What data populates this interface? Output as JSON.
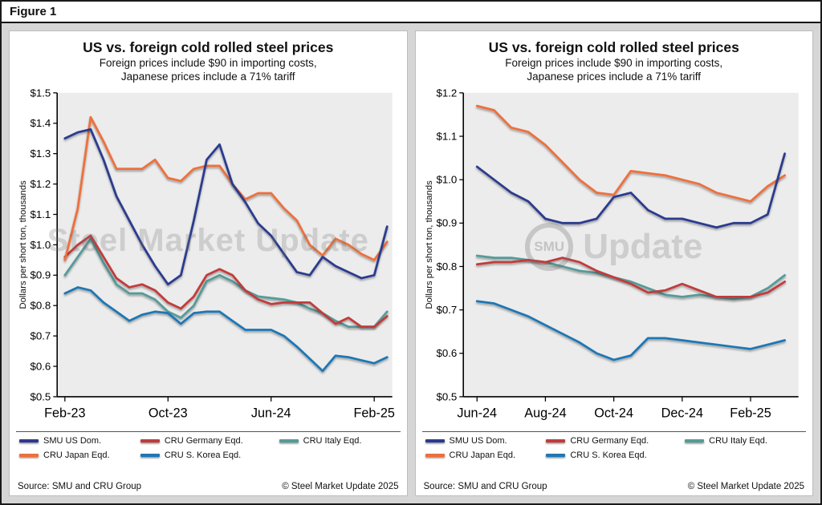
{
  "figure_label": "Figure 1",
  "chart_data": [
    {
      "type": "line",
      "title": "US vs. foreign cold rolled steel prices",
      "subtitle_line1": "Foreign prices include $90 in importing costs,",
      "subtitle_line2": "Japanese prices include a 71% tariff",
      "ylabel": "Dollars per short ton, thousands",
      "ytick_prefix": "$",
      "ytick_step": 0.1,
      "ylim": [
        0.5,
        1.5
      ],
      "xlim": [
        -0.6,
        25.4
      ],
      "grid": false,
      "legend_position": "bottom",
      "xticks": [
        {
          "x": 0,
          "label": "Feb-23"
        },
        {
          "x": 8,
          "label": "Oct-23"
        },
        {
          "x": 16,
          "label": "Jun-24"
        },
        {
          "x": 24,
          "label": "Feb-25"
        }
      ],
      "x": [
        0,
        1,
        2,
        3,
        4,
        5,
        6,
        7,
        8,
        9,
        10,
        11,
        12,
        13,
        14,
        15,
        16,
        17,
        18,
        19,
        20,
        21,
        22,
        23,
        24,
        25
      ],
      "series": [
        {
          "name": "SMU US Dom.",
          "color": "#2b3a8f",
          "values": [
            1.35,
            1.37,
            1.38,
            1.28,
            1.16,
            1.08,
            1.0,
            0.93,
            0.87,
            0.9,
            1.08,
            1.28,
            1.33,
            1.2,
            1.14,
            1.07,
            1.03,
            0.97,
            0.91,
            0.9,
            0.96,
            0.93,
            0.91,
            0.89,
            0.9,
            1.06
          ]
        },
        {
          "name": "CRU Germany Eqd.",
          "color": "#c23b3b",
          "values": [
            0.96,
            1.0,
            1.03,
            0.96,
            0.89,
            0.86,
            0.87,
            0.85,
            0.81,
            0.79,
            0.83,
            0.9,
            0.92,
            0.9,
            0.85,
            0.82,
            0.805,
            0.81,
            0.81,
            0.81,
            0.775,
            0.74,
            0.76,
            0.73,
            0.73,
            0.765
          ]
        },
        {
          "name": "CRU Italy Eqd.",
          "color": "#549b99",
          "values": [
            0.9,
            0.96,
            1.02,
            0.94,
            0.87,
            0.84,
            0.84,
            0.82,
            0.78,
            0.76,
            0.8,
            0.88,
            0.9,
            0.88,
            0.85,
            0.83,
            0.825,
            0.82,
            0.81,
            0.79,
            0.775,
            0.75,
            0.73,
            0.73,
            0.73,
            0.78
          ]
        },
        {
          "name": "CRU Japan Eqd.",
          "color": "#ee6f3a",
          "values": [
            0.95,
            1.12,
            1.42,
            1.34,
            1.25,
            1.25,
            1.25,
            1.28,
            1.22,
            1.21,
            1.25,
            1.26,
            1.26,
            1.2,
            1.15,
            1.17,
            1.17,
            1.12,
            1.08,
            1.0,
            0.965,
            1.02,
            1.0,
            0.97,
            0.95,
            1.01
          ]
        },
        {
          "name": "CRU S. Korea Eqd.",
          "color": "#1f77b5",
          "values": [
            0.84,
            0.86,
            0.85,
            0.81,
            0.78,
            0.75,
            0.77,
            0.78,
            0.775,
            0.74,
            0.775,
            0.78,
            0.78,
            0.75,
            0.72,
            0.72,
            0.72,
            0.7,
            0.665,
            0.625,
            0.585,
            0.635,
            0.63,
            0.62,
            0.61,
            0.63
          ]
        }
      ],
      "watermark_text": "Steel Market Update",
      "source": "Source: SMU and CRU Group",
      "copyright": "© Steel Market Update 2025"
    },
    {
      "type": "line",
      "title": "US vs. foreign cold rolled steel prices",
      "subtitle_line1": "Foreign prices include $90 in importing costs,",
      "subtitle_line2": "Japanese prices include a 71% tariff",
      "ylabel": "Dollars per short ton, thousands",
      "ytick_prefix": "$",
      "ytick_step": 0.1,
      "ylim": [
        0.5,
        1.2
      ],
      "xlim": [
        15.6,
        25.4
      ],
      "grid": false,
      "legend_position": "bottom",
      "xticks": [
        {
          "x": 16,
          "label": "Jun-24"
        },
        {
          "x": 18,
          "label": "Aug-24"
        },
        {
          "x": 20,
          "label": "Oct-24"
        },
        {
          "x": 22,
          "label": "Dec-24"
        },
        {
          "x": 24,
          "label": "Feb-25"
        }
      ],
      "x": [
        16,
        16.5,
        17,
        17.5,
        18,
        18.5,
        19,
        19.5,
        20,
        20.5,
        21,
        21.5,
        22,
        22.5,
        23,
        23.5,
        24,
        24.5,
        25
      ],
      "series": [
        {
          "name": "SMU US Dom.",
          "color": "#2b3a8f",
          "values": [
            1.03,
            1.0,
            0.97,
            0.95,
            0.91,
            0.9,
            0.9,
            0.91,
            0.96,
            0.97,
            0.93,
            0.91,
            0.91,
            0.9,
            0.89,
            0.9,
            0.9,
            0.92,
            1.06
          ]
        },
        {
          "name": "CRU Germany Eqd.",
          "color": "#c23b3b",
          "values": [
            0.805,
            0.81,
            0.81,
            0.815,
            0.81,
            0.82,
            0.81,
            0.79,
            0.775,
            0.76,
            0.74,
            0.745,
            0.76,
            0.745,
            0.73,
            0.73,
            0.73,
            0.74,
            0.765
          ]
        },
        {
          "name": "CRU Italy Eqd.",
          "color": "#549b99",
          "values": [
            0.825,
            0.82,
            0.82,
            0.815,
            0.81,
            0.8,
            0.79,
            0.785,
            0.775,
            0.765,
            0.75,
            0.735,
            0.73,
            0.735,
            0.73,
            0.725,
            0.73,
            0.75,
            0.78
          ]
        },
        {
          "name": "CRU Japan Eqd.",
          "color": "#ee6f3a",
          "values": [
            1.17,
            1.16,
            1.12,
            1.11,
            1.08,
            1.04,
            1.0,
            0.97,
            0.965,
            1.02,
            1.015,
            1.01,
            1.0,
            0.99,
            0.97,
            0.96,
            0.95,
            0.985,
            1.01
          ]
        },
        {
          "name": "CRU S. Korea Eqd.",
          "color": "#1f77b5",
          "values": [
            0.72,
            0.715,
            0.7,
            0.685,
            0.665,
            0.645,
            0.625,
            0.6,
            0.585,
            0.595,
            0.635,
            0.635,
            0.63,
            0.625,
            0.62,
            0.615,
            0.61,
            0.62,
            0.63
          ]
        }
      ],
      "watermark_logo": "SMU",
      "watermark_text": "Update",
      "source": "Source: SMU and CRU Group",
      "copyright": "© Steel Market Update 2025"
    }
  ]
}
